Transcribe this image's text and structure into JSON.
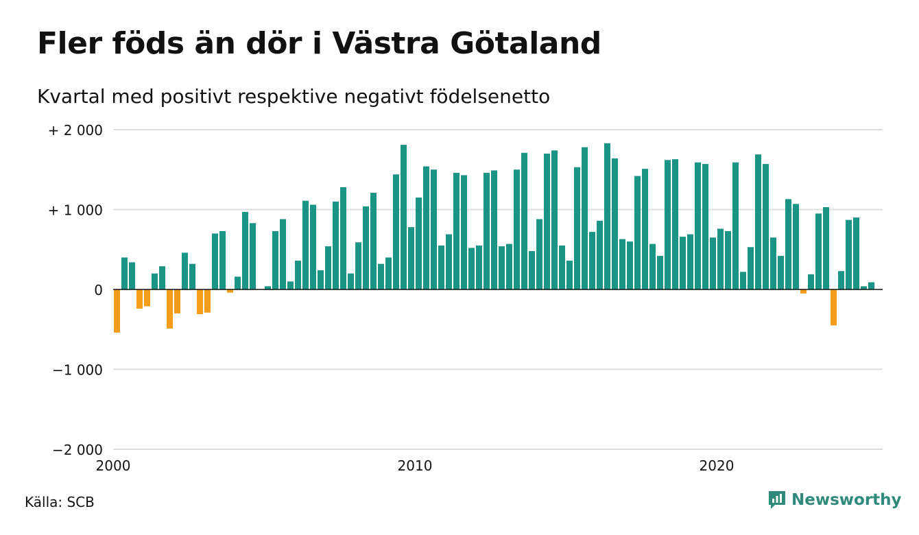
{
  "title": "Fler föds än dör i Västra Götaland",
  "subtitle": "Kvartal med positivt respektive negativt födelsenetto",
  "source": "Källa: SCB",
  "brand": "Newsworthy",
  "colors": {
    "positive": "#1a9485",
    "negative": "#f59d1a",
    "grid": "#dddddd",
    "axis": "#111111",
    "brand": "#2f8a7b"
  },
  "chart_data": {
    "type": "bar",
    "x_start": 2000,
    "x_end": 2025.5,
    "ylim": [
      -2000,
      2000
    ],
    "y_ticks": [
      2000,
      1000,
      0,
      -1000,
      -2000
    ],
    "y_tick_labels": [
      "+ 2 000",
      "+ 1 000",
      "0",
      "−1 000",
      "−2 000"
    ],
    "x_ticks": [
      2000,
      2010,
      2020
    ],
    "x_tick_labels": [
      "2000",
      "2010",
      "2020"
    ],
    "grid": true,
    "bar_start": 2000.0,
    "bar_step": 0.25,
    "values": [
      -540,
      400,
      340,
      -240,
      -210,
      200,
      290,
      -490,
      -300,
      460,
      320,
      -310,
      -290,
      700,
      730,
      -40,
      160,
      970,
      830,
      0,
      40,
      730,
      880,
      100,
      360,
      1110,
      1060,
      240,
      540,
      1100,
      1280,
      200,
      590,
      1040,
      1210,
      320,
      400,
      1440,
      1810,
      780,
      1150,
      1540,
      1500,
      550,
      690,
      1460,
      1430,
      520,
      550,
      1460,
      1490,
      540,
      570,
      1500,
      1710,
      480,
      880,
      1700,
      1740,
      550,
      360,
      1530,
      1780,
      720,
      860,
      1830,
      1640,
      630,
      600,
      1420,
      1510,
      570,
      420,
      1620,
      1630,
      660,
      690,
      1590,
      1570,
      650,
      760,
      730,
      1590,
      220,
      530,
      1690,
      1570,
      650,
      420,
      1130,
      1070,
      -50,
      190,
      950,
      1030,
      -450,
      230,
      870,
      900,
      40,
      90
    ]
  }
}
